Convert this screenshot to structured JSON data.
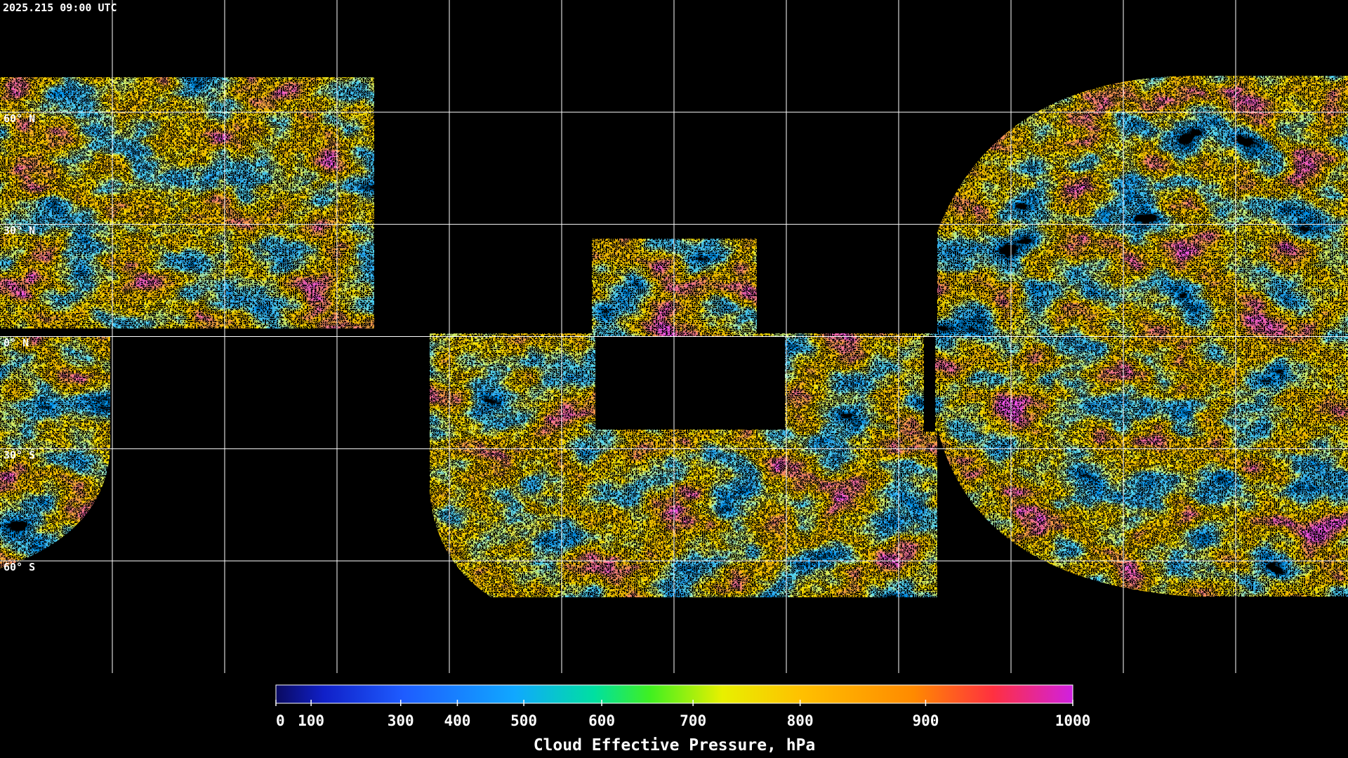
{
  "timestamp": "2025.215 09:00 UTC",
  "map": {
    "latitude_lines": [
      {
        "value": 60,
        "label": "60° N"
      },
      {
        "value": 30,
        "label": "30° N"
      },
      {
        "value": 0,
        "label": "0° N"
      },
      {
        "value": -30,
        "label": "30° S"
      },
      {
        "value": -60,
        "label": "60° S"
      }
    ]
  },
  "colorbar": {
    "title": "Cloud Effective Pressure, hPa",
    "xlim": [
      0,
      1000
    ],
    "xticks": [
      0,
      100,
      300,
      400,
      500,
      600,
      700,
      800,
      900,
      1000
    ]
  }
}
